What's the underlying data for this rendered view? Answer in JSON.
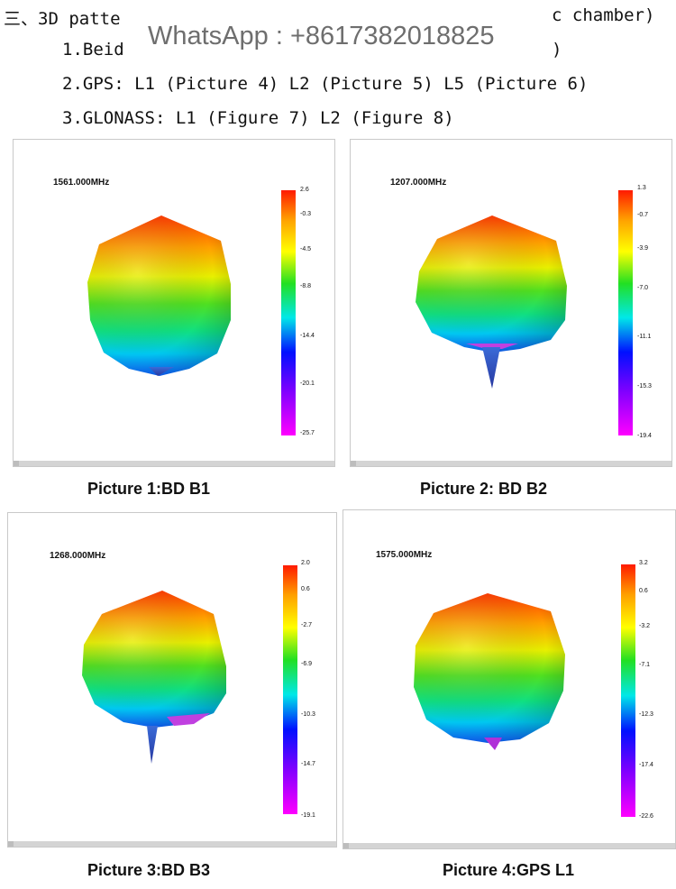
{
  "heading": {
    "title_start": "三、3D patte",
    "title_end": "c chamber)",
    "item1_start": "1.Beid",
    "item1_end": ")",
    "item2": "2.GPS: L1 (Picture 4) L2 (Picture 5) L5 (Picture 6)",
    "item3": "3.GLONASS: L1 (Figure 7) L2 (Figure 8)"
  },
  "watermark": "WhatsApp : +8617382018825",
  "colors": {
    "scale_top": "#ff1a00",
    "scale_mid": "#22e022",
    "scale_low": "#0010ff",
    "scale_bottom": "#ff00ff"
  },
  "panels": [
    {
      "frequency": "1561.000MHz",
      "caption": "Picture 1:BD B1",
      "scale": [
        "2.6",
        "-0.3",
        "-4.5",
        "-8.8",
        "-14.4",
        "-20.1",
        "-25.7"
      ]
    },
    {
      "frequency": "1207.000MHz",
      "caption": "Picture 2: BD  B2",
      "scale": [
        "1.3",
        "-0.7",
        "-3.9",
        "-7.0",
        "-11.1",
        "-15.3",
        "-19.4"
      ]
    },
    {
      "frequency": "1268.000MHz",
      "caption": "Picture  3:BD B3",
      "scale": [
        "2.0",
        "0.6",
        "-2.7",
        "-6.9",
        "-10.3",
        "-14.7",
        "-19.1"
      ]
    },
    {
      "frequency": "1575.000MHz",
      "caption": "Picture  4:GPS L1",
      "scale": [
        "3.2",
        "0.6",
        "-3.2",
        "-7.1",
        "-12.3",
        "-17.4",
        "-22.6"
      ]
    }
  ]
}
